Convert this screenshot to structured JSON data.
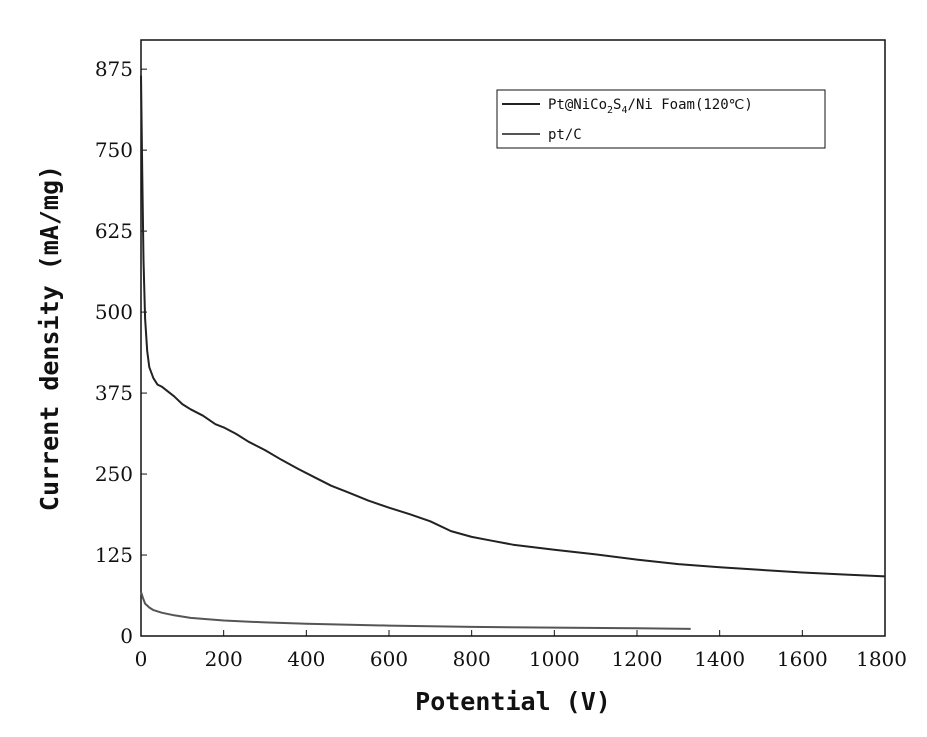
{
  "chart_data": {
    "type": "line",
    "xlabel": "Potential (V)",
    "ylabel": "Current density (mA/mg)",
    "xlim": [
      0,
      1800
    ],
    "ylim": [
      0,
      920
    ],
    "xticks": [
      0,
      200,
      400,
      600,
      800,
      1000,
      1200,
      1400,
      1600,
      1800
    ],
    "yticks": [
      0,
      125,
      250,
      375,
      500,
      625,
      750,
      875
    ],
    "grid": false,
    "legend_position": "top-right",
    "series": [
      {
        "name": "Pt@NiCo2S4/Ni Foam(120℃)",
        "legend_parts": {
          "prefix": "Pt@NiCo",
          "sub1": "2",
          "mid": "S",
          "sub2": "4",
          "suffix": "/Ni Foam(120℃)"
        },
        "color": "#222222",
        "x": [
          0,
          3,
          6,
          10,
          15,
          20,
          30,
          40,
          50,
          60,
          80,
          100,
          120,
          150,
          180,
          200,
          230,
          260,
          300,
          340,
          380,
          420,
          460,
          500,
          550,
          600,
          650,
          700,
          750,
          800,
          850,
          900,
          950,
          1000,
          1100,
          1200,
          1300,
          1400,
          1500,
          1600,
          1700,
          1800
        ],
        "y": [
          865,
          720,
          580,
          490,
          440,
          415,
          398,
          388,
          385,
          380,
          370,
          358,
          350,
          340,
          327,
          322,
          312,
          300,
          287,
          272,
          258,
          245,
          232,
          222,
          209,
          198,
          188,
          177,
          162,
          153,
          147,
          141,
          137,
          133,
          126,
          118,
          111,
          106,
          102,
          98,
          95,
          92
        ]
      },
      {
        "name": "pt/C",
        "color": "#555555",
        "x": [
          0,
          5,
          10,
          20,
          30,
          50,
          80,
          120,
          200,
          300,
          400,
          600,
          800,
          1000,
          1200,
          1330
        ],
        "y": [
          68,
          58,
          50,
          44,
          40,
          36,
          32,
          28,
          24,
          21,
          19,
          16,
          14,
          13,
          12,
          11
        ]
      }
    ]
  }
}
